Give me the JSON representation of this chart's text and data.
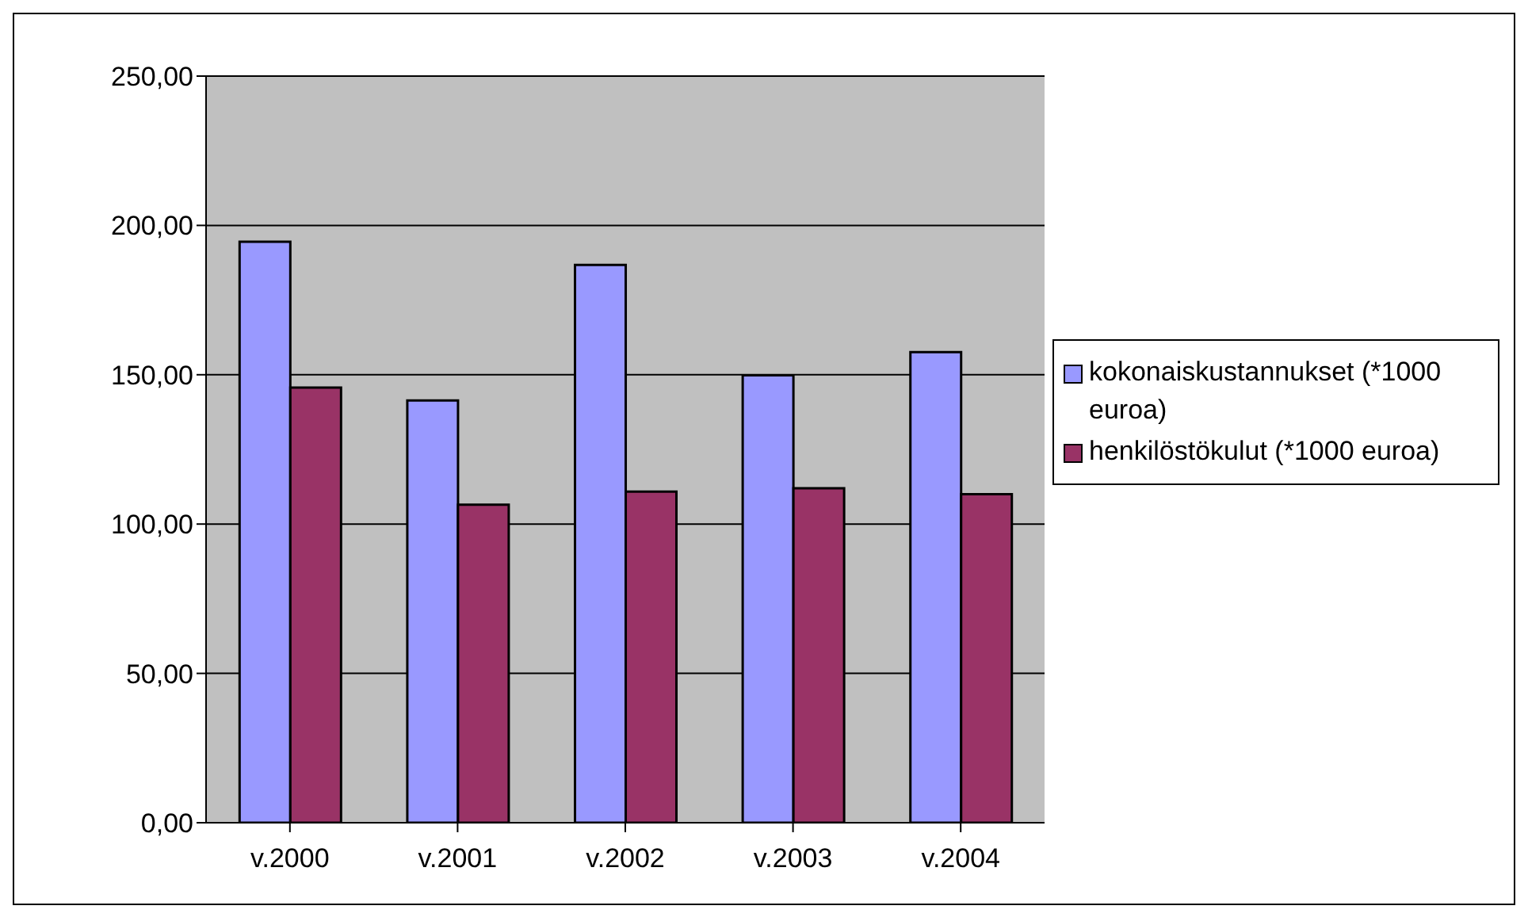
{
  "chart_data": {
    "type": "bar",
    "categories": [
      "v.2000",
      "v.2001",
      "v.2002",
      "v.2003",
      "v.2004"
    ],
    "series": [
      {
        "name": "kokonaiskustannukset (*1000 euroa)",
        "color": "#9999ff",
        "values": [
          194.5,
          141.4,
          186.8,
          149.8,
          157.6
        ]
      },
      {
        "name": "henkilöstökulut (*1000 euroa)",
        "color": "#993366",
        "values": [
          145.7,
          106.5,
          110.9,
          112,
          110
        ]
      }
    ],
    "ylim": [
      0,
      250
    ],
    "yticks": [
      {
        "value": 0,
        "label": "0,00"
      },
      {
        "value": 50,
        "label": "50,00"
      },
      {
        "value": 100,
        "label": "100,00"
      },
      {
        "value": 150,
        "label": "150,00"
      },
      {
        "value": 200,
        "label": "200,00"
      },
      {
        "value": 250,
        "label": "250,00"
      }
    ],
    "grid": "y",
    "legend": "right"
  }
}
